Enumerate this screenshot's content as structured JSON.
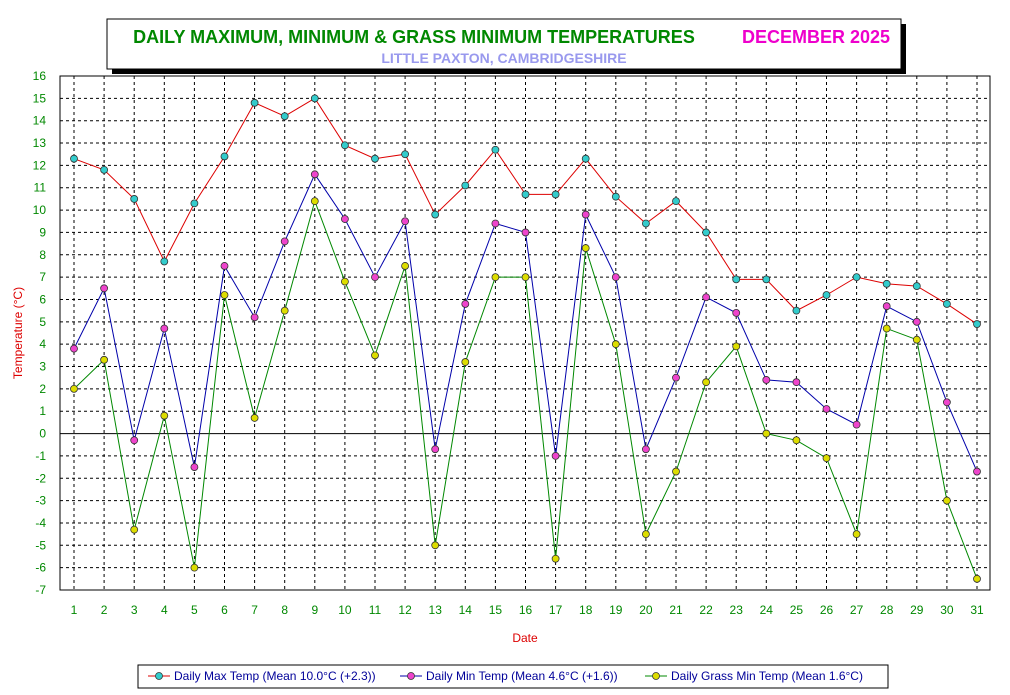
{
  "chart_data": {
    "type": "line",
    "title": "DAILY MAXIMUM, MINIMUM & GRASS MINIMUM TEMPERATURES",
    "month": "DECEMBER 2025",
    "subtitle": "LITTLE PAXTON, CAMBRIDGESHIRE",
    "xlabel": "Date",
    "ylabel": "Temperature (°C)",
    "x": [
      1,
      2,
      3,
      4,
      5,
      6,
      7,
      8,
      9,
      10,
      11,
      12,
      13,
      14,
      15,
      16,
      17,
      18,
      19,
      20,
      21,
      22,
      23,
      24,
      25,
      26,
      27,
      28,
      29,
      30,
      31
    ],
    "ylim": [
      -7,
      16
    ],
    "yticks": [
      -7,
      -6,
      -5,
      -4,
      -3,
      -2,
      -1,
      0,
      1,
      2,
      3,
      4,
      5,
      6,
      7,
      8,
      9,
      10,
      11,
      12,
      13,
      14,
      15,
      16
    ],
    "grid": true,
    "legend_position": "bottom",
    "series": [
      {
        "name": "Daily Max Temp (Mean 10.0°C (+2.3))",
        "line_color": "#dd0000",
        "marker_color": "#33cccc",
        "values": [
          12.3,
          11.8,
          10.5,
          7.7,
          10.3,
          12.4,
          14.8,
          14.2,
          15.0,
          12.9,
          12.3,
          12.5,
          9.8,
          11.1,
          12.7,
          10.7,
          10.7,
          12.3,
          10.6,
          9.4,
          10.4,
          9.0,
          6.9,
          6.9,
          5.5,
          6.2,
          7.0,
          6.7,
          6.6,
          5.8,
          4.9
        ]
      },
      {
        "name": "Daily Min Temp (Mean 4.6°C (+1.6))",
        "line_color": "#0000aa",
        "marker_color": "#ee44cc",
        "values": [
          3.8,
          6.5,
          -0.3,
          4.7,
          -1.5,
          7.5,
          5.2,
          8.6,
          11.6,
          9.6,
          7.0,
          9.5,
          -0.7,
          5.8,
          9.4,
          9.0,
          -1.0,
          9.8,
          7.0,
          -0.7,
          2.5,
          6.1,
          5.4,
          2.4,
          2.3,
          1.1,
          0.4,
          5.7,
          5.0,
          1.4,
          -1.7
        ]
      },
      {
        "name": "Daily Grass Min Temp (Mean 1.6°C)",
        "line_color": "#008800",
        "marker_color": "#dddd00",
        "values": [
          2.0,
          3.3,
          -4.3,
          0.8,
          -6.0,
          6.2,
          0.7,
          5.5,
          10.4,
          6.8,
          3.5,
          7.5,
          -5.0,
          3.2,
          7.0,
          7.0,
          -5.6,
          8.3,
          4.0,
          -4.5,
          -1.7,
          2.3,
          3.9,
          0.0,
          -0.3,
          -1.1,
          -4.5,
          4.7,
          4.2,
          -3.0,
          -6.5
        ]
      }
    ]
  },
  "colors": {
    "title": "#008800",
    "month": "#ee00cc",
    "subtitle": "#9999ee",
    "tick_labels": "#008800",
    "axis_title": "#dd0000"
  }
}
